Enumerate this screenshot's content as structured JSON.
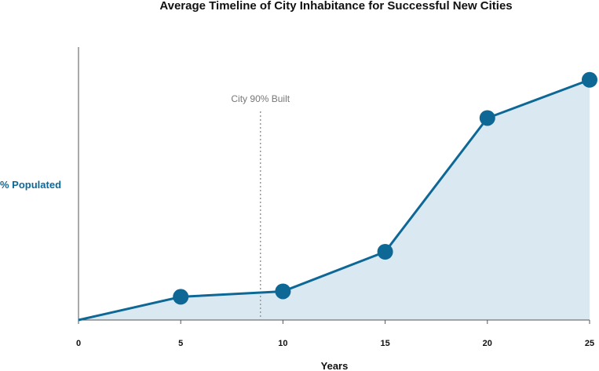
{
  "chart_data": {
    "type": "area",
    "title": "Average Timeline of City Inhabitance for Successful New Cities",
    "xlabel": "Years",
    "ylabel": "% Populated",
    "x": [
      0,
      5,
      10,
      15,
      20,
      25
    ],
    "xlim": [
      0,
      25
    ],
    "xticks": [
      "0",
      "5",
      "10",
      "15",
      "20",
      "25"
    ],
    "ylim": [
      0,
      100
    ],
    "series": [
      {
        "values": [
          0,
          8.5,
          10.5,
          25,
          74,
          88
        ],
        "markers_at": [
          5,
          10,
          15,
          20,
          25
        ]
      }
    ],
    "annotations": [
      {
        "text": "City 90% Built",
        "x": 8.9,
        "style": "dotted-vertical-line"
      }
    ],
    "grid": false,
    "legend": "none",
    "colors": {
      "line": "#0e6896",
      "fill": "#dae8f1",
      "ylabel": "#0e6896",
      "annotation": "#999999"
    }
  }
}
